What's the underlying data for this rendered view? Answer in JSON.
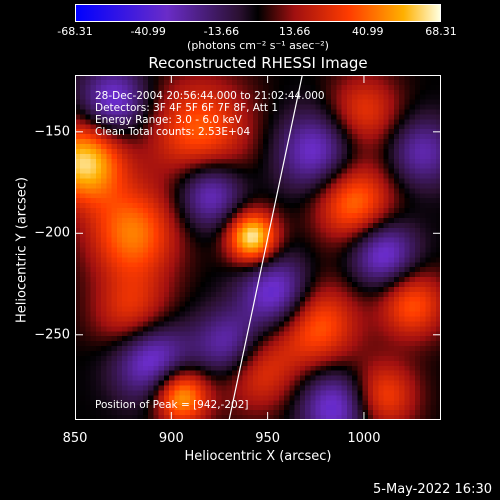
{
  "colorbar": {
    "ticks": [
      "-68.31",
      "-40.99",
      "-13.66",
      "13.66",
      "40.99",
      "68.31"
    ],
    "units": "(photons cm⁻² s⁻¹ asec⁻²)",
    "range": [
      -68.31,
      68.31
    ]
  },
  "chart_data": {
    "type": "heatmap",
    "title": "Reconstructed RHESSI Image",
    "xlabel": "Heliocentric X (arcsec)",
    "ylabel": "Heliocentric Y (arcsec)",
    "xlim": [
      850,
      1040
    ],
    "ylim": [
      -292,
      -122
    ],
    "xticks": [
      850,
      900,
      950,
      1000
    ],
    "yticks": [
      -150,
      -200,
      -250
    ],
    "annotations": {
      "time": "28-Dec-2004 20:56:44.000 to 21:02:44.000",
      "detectors": "Detectors: 3F 4F 5F 6F 7F 8F, Att 1",
      "energy": "Energy Range: 3.0 - 6.0 keV",
      "clean": "Clean     Total counts: 2.53E+04",
      "position": "Position of Peak = [942,-202]"
    },
    "peak": [
      942,
      -202
    ],
    "limb_line": [
      [
        930,
        -292
      ],
      [
        968,
        -122
      ]
    ],
    "sources": [
      {
        "x": 942,
        "y": -202,
        "value": 68,
        "width": 9
      },
      {
        "x": 855,
        "y": -165,
        "value": 62,
        "width": 14
      },
      {
        "x": 905,
        "y": -280,
        "value": 58,
        "width": 10
      },
      {
        "x": 880,
        "y": -200,
        "value": 45,
        "width": 16
      },
      {
        "x": 915,
        "y": -150,
        "value": 40,
        "width": 18
      },
      {
        "x": 995,
        "y": -185,
        "value": 45,
        "width": 14
      },
      {
        "x": 975,
        "y": -245,
        "value": 42,
        "width": 15
      },
      {
        "x": 1025,
        "y": -235,
        "value": 38,
        "width": 12
      },
      {
        "x": 1010,
        "y": -280,
        "value": 35,
        "width": 12
      },
      {
        "x": 880,
        "y": -240,
        "value": 32,
        "width": 14
      },
      {
        "x": 945,
        "y": -268,
        "value": 30,
        "width": 14
      },
      {
        "x": 1000,
        "y": -140,
        "value": 30,
        "width": 13
      },
      {
        "x": 890,
        "y": -262,
        "value": -45,
        "width": 14
      },
      {
        "x": 920,
        "y": -180,
        "value": -40,
        "width": 12
      },
      {
        "x": 955,
        "y": -230,
        "value": -45,
        "width": 13
      },
      {
        "x": 870,
        "y": -135,
        "value": -40,
        "width": 12
      },
      {
        "x": 975,
        "y": -160,
        "value": -38,
        "width": 14
      },
      {
        "x": 1010,
        "y": -210,
        "value": -42,
        "width": 12
      },
      {
        "x": 985,
        "y": -285,
        "value": -40,
        "width": 13
      },
      {
        "x": 930,
        "y": -255,
        "value": -35,
        "width": 12
      },
      {
        "x": 1030,
        "y": -160,
        "value": -30,
        "width": 12
      }
    ]
  },
  "footer": {
    "datestamp": "5-May-2022 16:30"
  }
}
